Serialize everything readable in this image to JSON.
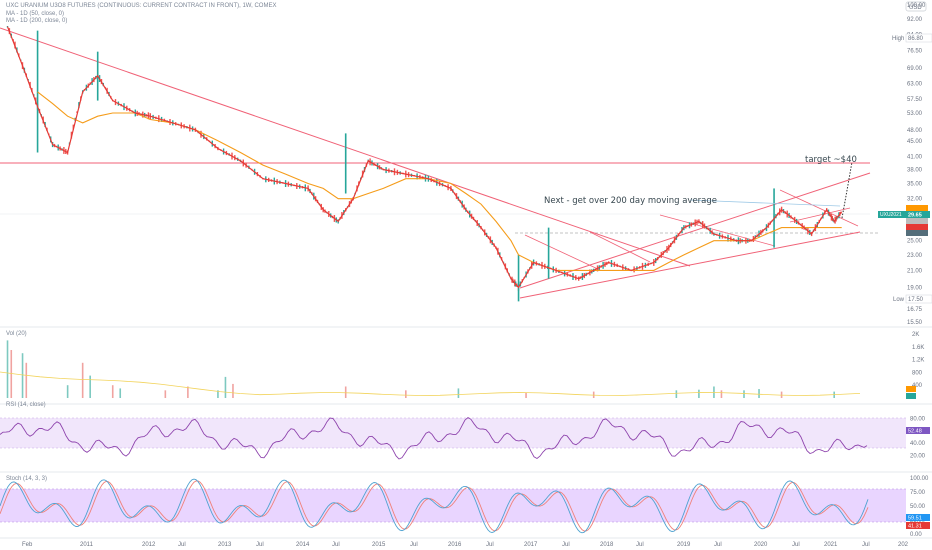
{
  "header": {
    "title": "UXC URANIUM U3O8 FUTURES (CONTINUOUS: CURRENT CONTRACT IN FRONT), 1W, COMEX",
    "ma1": "MA - 1D (50, close, 0)",
    "ma2": "MA - 1D (200, close, 0)",
    "currency": "USD"
  },
  "panes": {
    "volume_label": "Vol (20)",
    "rsi_label": "RSI (14, close)",
    "stoch_label": "Stoch (14, 3, 3)"
  },
  "annotations": {
    "target": "target ~$40",
    "next": "Next - get over 200 day moving average",
    "high_label": "High",
    "high_value": "86.80",
    "low_label": "Low",
    "low_value": "17.50",
    "symbol_tag": "UXU2021",
    "symbol_price": "29.65"
  },
  "colors": {
    "price_line": "#e53935",
    "ma50": "#f59c1a",
    "trendline": "#f06277",
    "rsi_band": "#e9d5ff",
    "rsi_line": "#8e44ad",
    "stoch_k": "#4fa3d1",
    "stoch_d": "#f0817a",
    "up_candle": "#26a69a",
    "down_candle": "#ef5350",
    "vol_ma": "#f2d35a"
  },
  "chart_data": [
    {
      "type": "line",
      "title": "UXC URANIUM U3O8 FUTURES (CONTINUOUS: CURRENT CONTRACT IN FRONT), 1W, COMEX",
      "x_ticks": [
        "Feb",
        "2011",
        "2012",
        "Jul",
        "2013",
        "Jul",
        "2014",
        "Jul",
        "2015",
        "Jul",
        "2016",
        "Jul",
        "2017",
        "Jul",
        "2018",
        "Jul",
        "2019",
        "Jul",
        "2020",
        "Jul",
        "2021",
        "Jul",
        "202"
      ],
      "y_ticks": [
        "100.00",
        "92.00",
        "84.00",
        "76.50",
        "69.00",
        "63.00",
        "57.50",
        "53.00",
        "48.00",
        "45.00",
        "41.00",
        "38.00",
        "35.00",
        "32.00",
        "28.00",
        "25.00",
        "23.00",
        "21.00",
        "19.00",
        "16.75",
        "15.50"
      ],
      "scale": "log",
      "ylim": [
        15.5,
        100
      ],
      "x": [
        2010.1,
        2010.3,
        2010.5,
        2010.7,
        2010.9,
        2011.1,
        2011.3,
        2011.5,
        2011.8,
        2012.0,
        2012.3,
        2012.6,
        2012.9,
        2013.2,
        2013.5,
        2013.8,
        2014.1,
        2014.3,
        2014.5,
        2014.7,
        2014.9,
        2015.1,
        2015.4,
        2015.7,
        2016.0,
        2016.2,
        2016.4,
        2016.6,
        2016.8,
        2016.9,
        2017.1,
        2017.4,
        2017.7,
        2017.9,
        2018.1,
        2018.4,
        2018.7,
        2018.9,
        2019.1,
        2019.3,
        2019.5,
        2019.8,
        2020.0,
        2020.2,
        2020.4,
        2020.6,
        2020.8,
        2021.0,
        2021.1,
        2021.2
      ],
      "series": [
        {
          "values": [
            88,
            70,
            55,
            44,
            42,
            60,
            66,
            57,
            53,
            52,
            50,
            48,
            43,
            40,
            36,
            35,
            34,
            30,
            28,
            32,
            40,
            38,
            37,
            36,
            34,
            30,
            27,
            24,
            20,
            19,
            22,
            21,
            20,
            21,
            22,
            21,
            22,
            24,
            27,
            28,
            26,
            25,
            25,
            27,
            30,
            28,
            26,
            30,
            28,
            29.65
          ]
        },
        {
          "values": [
            null,
            null,
            60,
            56,
            52,
            50,
            52,
            53,
            53,
            51,
            50,
            48,
            45,
            42,
            39,
            37,
            35,
            34,
            32,
            32,
            33,
            34,
            36,
            36,
            35,
            33,
            31,
            28,
            25,
            23,
            22,
            21,
            21,
            21,
            21,
            21,
            21,
            22,
            23,
            24,
            25,
            25,
            25,
            26,
            27,
            27,
            27,
            27,
            27,
            27
          ]
        }
      ]
    },
    {
      "type": "bar",
      "title": "Vol (20)",
      "y_ticks": [
        "2K",
        "1.6K",
        "1.2K",
        "800",
        "400"
      ]
    },
    {
      "type": "line",
      "title": "RSI (14, close)",
      "y_ticks": [
        "80.00",
        "60.00",
        "40.00",
        "20.00"
      ],
      "ylim": [
        0,
        100
      ],
      "value": "52.48"
    },
    {
      "type": "line",
      "title": "Stoch (14, 3, 3)",
      "y_ticks": [
        "100.00",
        "75.00",
        "50.00",
        "25.00",
        "0.00"
      ],
      "ylim": [
        0,
        100
      ],
      "values_right": [
        "59.51",
        "41.31"
      ]
    }
  ]
}
